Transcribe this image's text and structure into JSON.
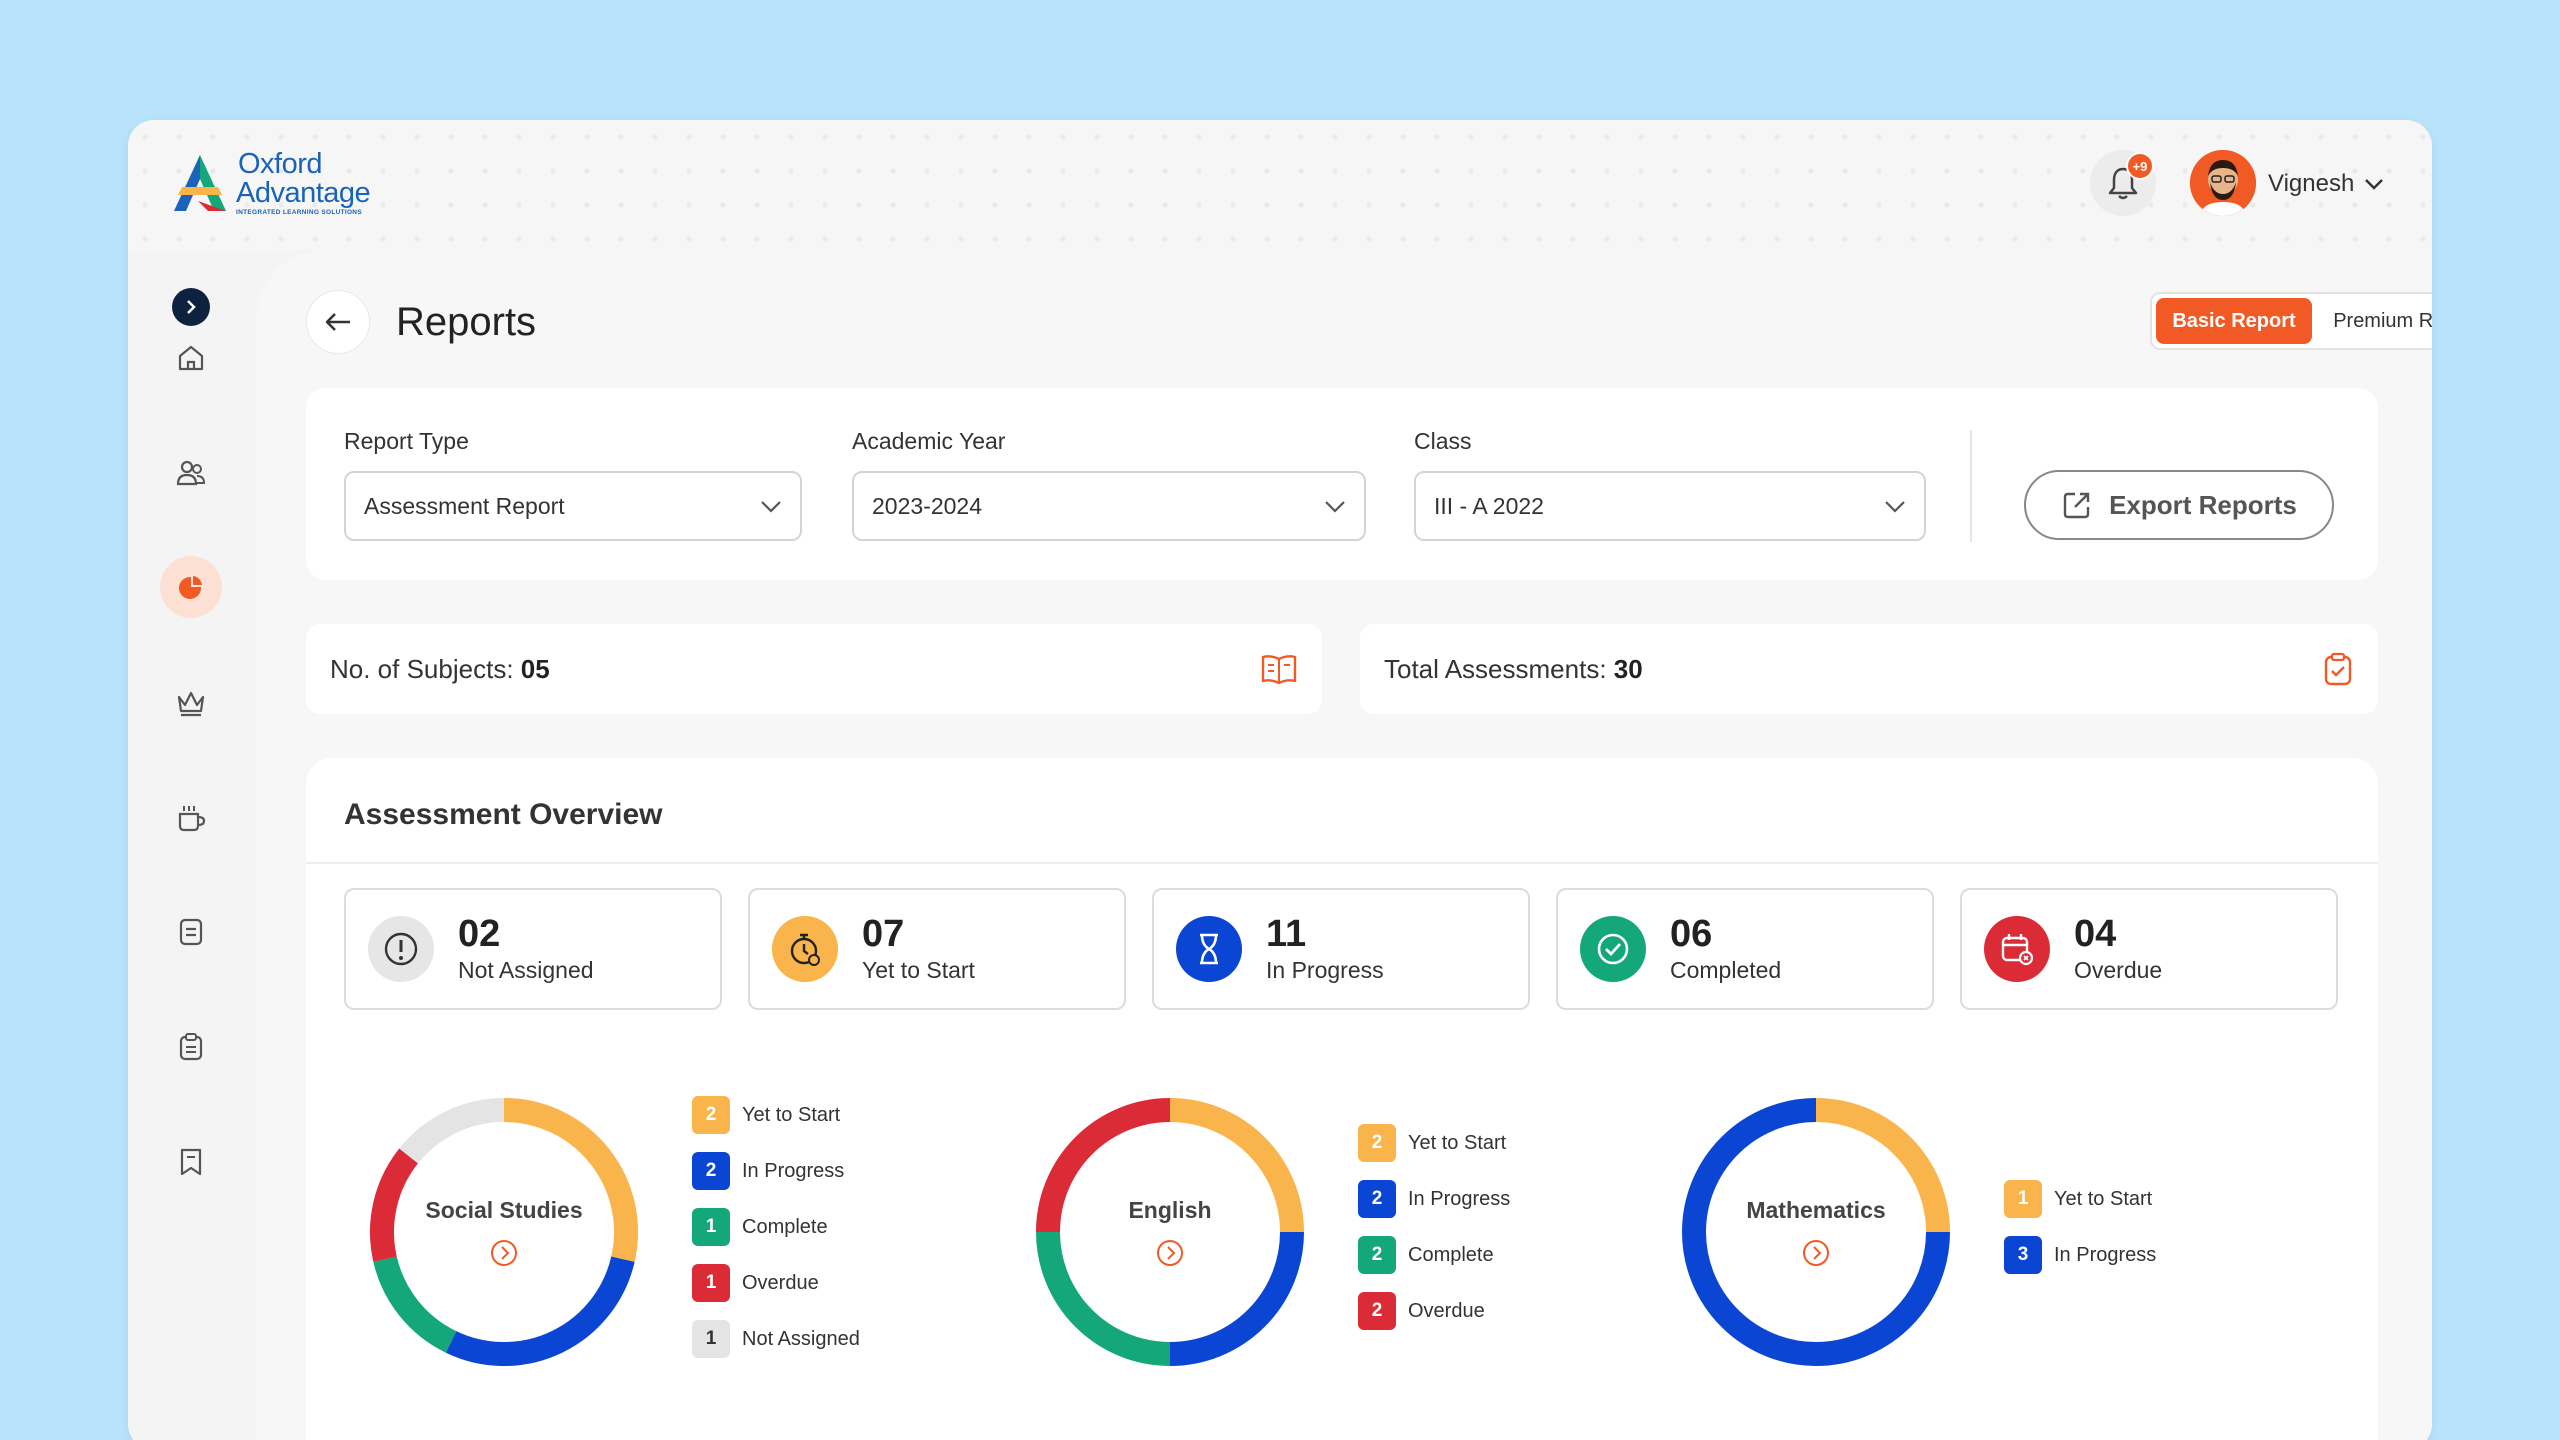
{
  "header": {
    "logo_line1": "Oxford",
    "logo_line2": "Advantage",
    "logo_tagline": "INTEGRATED LEARNING SOLUTIONS",
    "notification_badge": "+9",
    "user_name": "Vignesh"
  },
  "sidebar": {
    "items": [
      {
        "name": "home-icon"
      },
      {
        "name": "users-icon"
      },
      {
        "name": "reports-icon",
        "active": true
      },
      {
        "name": "crown-icon"
      },
      {
        "name": "mug-icon"
      },
      {
        "name": "book-icon"
      },
      {
        "name": "clipboard-icon"
      },
      {
        "name": "bookmark-icon"
      }
    ]
  },
  "page": {
    "title": "Reports",
    "report_toggle": {
      "active": "Basic Report",
      "inactive": "Premium Report"
    }
  },
  "filters": {
    "report_type": {
      "label": "Report Type",
      "value": "Assessment Report"
    },
    "academic_year": {
      "label": "Academic Year",
      "value": "2023-2024"
    },
    "class": {
      "label": "Class",
      "value": "III - A 2022"
    },
    "export_label": "Export Reports"
  },
  "stats": {
    "subjects_label": "No. of Subjects:",
    "subjects_value": "05",
    "assessments_label": "Total Assessments:",
    "assessments_value": "30"
  },
  "overview": {
    "title": "Assessment Overview",
    "status_cards": [
      {
        "count": "02",
        "label": "Not Assigned",
        "color": "#e6e6e6",
        "icon": "alert-icon"
      },
      {
        "count": "07",
        "label": "Yet to Start",
        "color": "#f9b44b",
        "icon": "timer-icon"
      },
      {
        "count": "11",
        "label": "In Progress",
        "color": "#0a45d4",
        "icon": "hourglass-icon"
      },
      {
        "count": "06",
        "label": "Completed",
        "color": "#14a77a",
        "icon": "check-icon"
      },
      {
        "count": "04",
        "label": "Overdue",
        "color": "#db2b36",
        "icon": "calendar-icon"
      }
    ]
  },
  "colors": {
    "accent": "#f15a24",
    "yet_to_start": "#f9b44b",
    "in_progress": "#0a45d4",
    "complete": "#14a77a",
    "overdue": "#db2b36",
    "not_assigned": "#e4e4e4"
  },
  "chart_data": [
    {
      "type": "pie",
      "title": "Social Studies",
      "categories": [
        "Yet to Start",
        "In Progress",
        "Complete",
        "Overdue",
        "Not Assigned"
      ],
      "values": [
        2,
        2,
        1,
        1,
        1
      ]
    },
    {
      "type": "pie",
      "title": "English",
      "categories": [
        "Yet to Start",
        "In Progress",
        "Complete",
        "Overdue"
      ],
      "values": [
        2,
        2,
        2,
        2
      ]
    },
    {
      "type": "pie",
      "title": "Mathematics",
      "categories": [
        "Yet to Start",
        "In Progress"
      ],
      "values": [
        1,
        3
      ]
    }
  ]
}
